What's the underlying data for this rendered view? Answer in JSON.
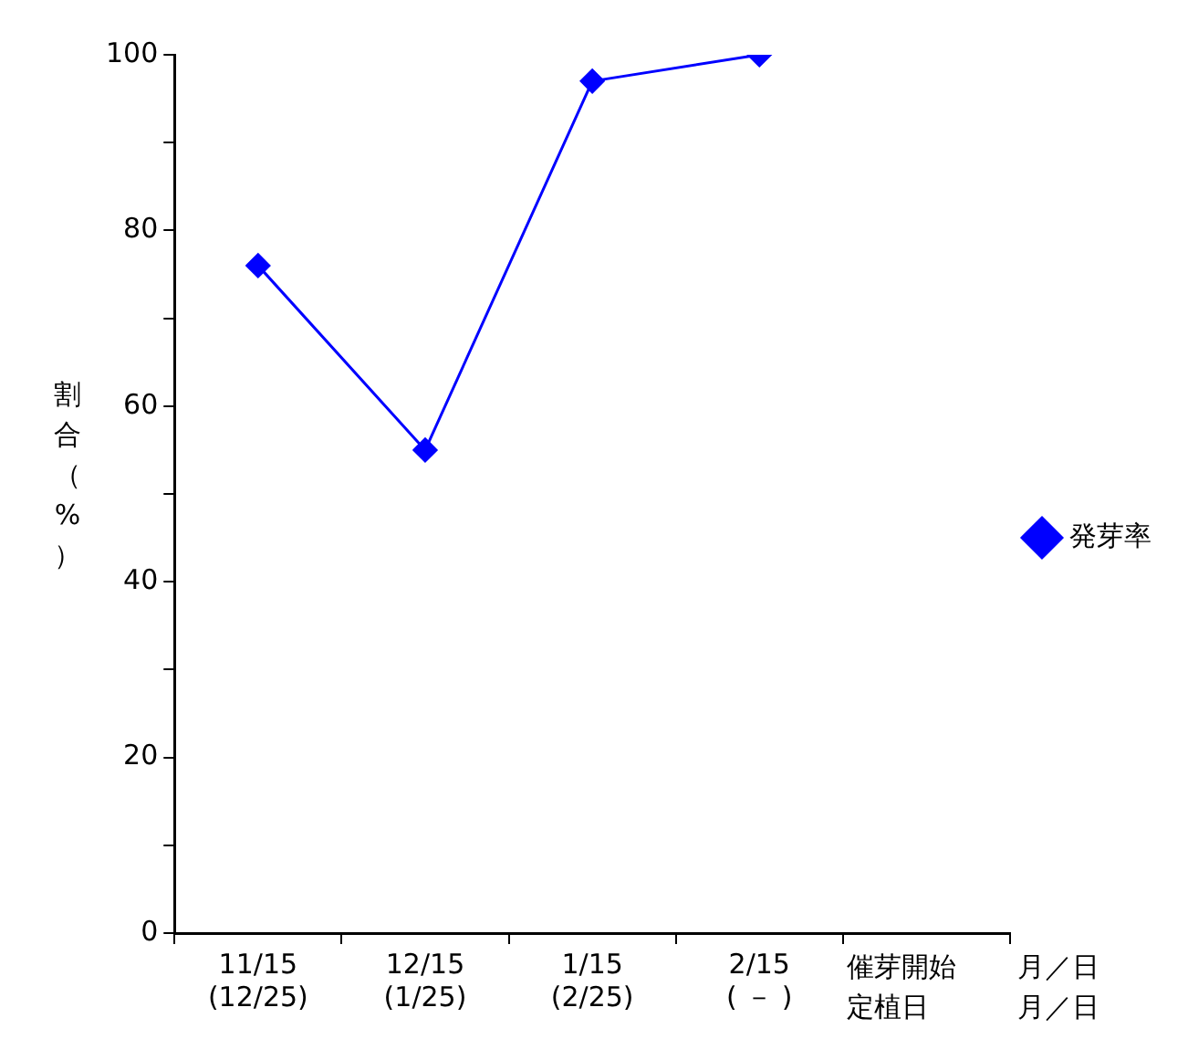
{
  "chart_data": {
    "type": "line",
    "ylabel": "割合（%）",
    "annotations": [
      "催芽開始",
      "月／日",
      "定植日",
      "月／日"
    ],
    "categories": [
      "11/15\n(12/25)",
      "12/15\n(1/25)",
      "1/15\n(2/25)",
      "2/15\n( － )",
      null
    ],
    "series": [
      {
        "name": "発芽率",
        "color": "#0000ff",
        "values": [
          76,
          55,
          97,
          100,
          null
        ]
      }
    ],
    "ylim": [
      0,
      100
    ],
    "yticks": [
      0,
      {
        "value": 10,
        "label": null
      },
      20,
      {
        "value": 30,
        "label": null
      },
      40,
      {
        "value": 50,
        "label": null
      },
      60,
      {
        "value": 70,
        "label": null
      },
      80,
      {
        "value": 90,
        "label": null
      },
      100
    ],
    "legend": "right",
    "marker": "diamond",
    "line_style": "solid"
  }
}
